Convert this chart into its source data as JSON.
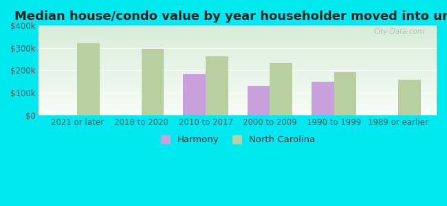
{
  "title": "Median house/condo value by year householder moved into unit",
  "categories": [
    "2021 or later",
    "2018 to 2020",
    "2010 to 2017",
    "2000 to 2009",
    "1990 to 1999",
    "1989 or earlier"
  ],
  "harmony_values": [
    null,
    null,
    182000,
    132000,
    150000,
    null
  ],
  "nc_values": [
    320000,
    298000,
    263000,
    232000,
    193000,
    158000
  ],
  "harmony_color": "#c9a0dc",
  "nc_color": "#b8cfa0",
  "bar_width": 0.35,
  "ylim": [
    0,
    400000
  ],
  "yticks": [
    0,
    100000,
    200000,
    300000,
    400000
  ],
  "ytick_labels": [
    "$0",
    "$100k",
    "$200k",
    "$300k",
    "$400k"
  ],
  "outer_bg": "#00e8f0",
  "plot_bg_top": "#f8fdf8",
  "plot_bg_bottom": "#d8ecd8",
  "title_fontsize": 13,
  "tick_fontsize": 8.5,
  "tick_color": "#555555",
  "legend_labels": [
    "Harmony",
    "North Carolina"
  ],
  "watermark": "City-Data.com"
}
